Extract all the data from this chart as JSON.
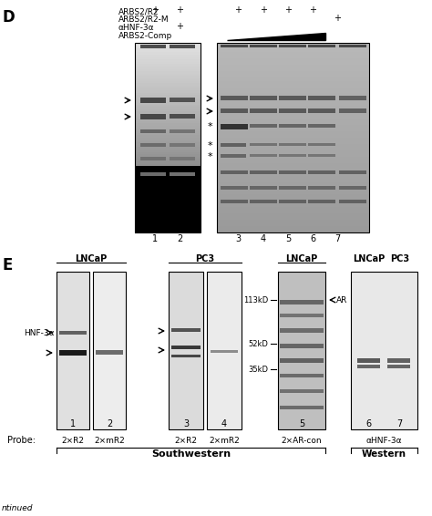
{
  "bg": "#ffffff",
  "panel_D_label": "D",
  "panel_E_label": "E",
  "header_row1": "ARBS2/R2",
  "header_row2": "ARBS2/R2-M",
  "header_row3": "αHNF-3α",
  "header_row4": "ARBS2-Comp",
  "bottom_text": "ntinued",
  "lncap": "LNCaP",
  "pc3": "PC3",
  "southwestern": "Southwestern",
  "western": "Western",
  "probe_label": "Probe:",
  "probe1": "2×R2",
  "probe2": "2×mR2",
  "probe3": "2×R2",
  "probe4": "2×mR2",
  "probe5": "2×AR-con",
  "probe67": "αHNF-3α",
  "mw1": "113kD",
  "mw2": "52kD",
  "mw3": "35kD",
  "ar_label": "AR",
  "hnf3a_label": "HNF-3α"
}
